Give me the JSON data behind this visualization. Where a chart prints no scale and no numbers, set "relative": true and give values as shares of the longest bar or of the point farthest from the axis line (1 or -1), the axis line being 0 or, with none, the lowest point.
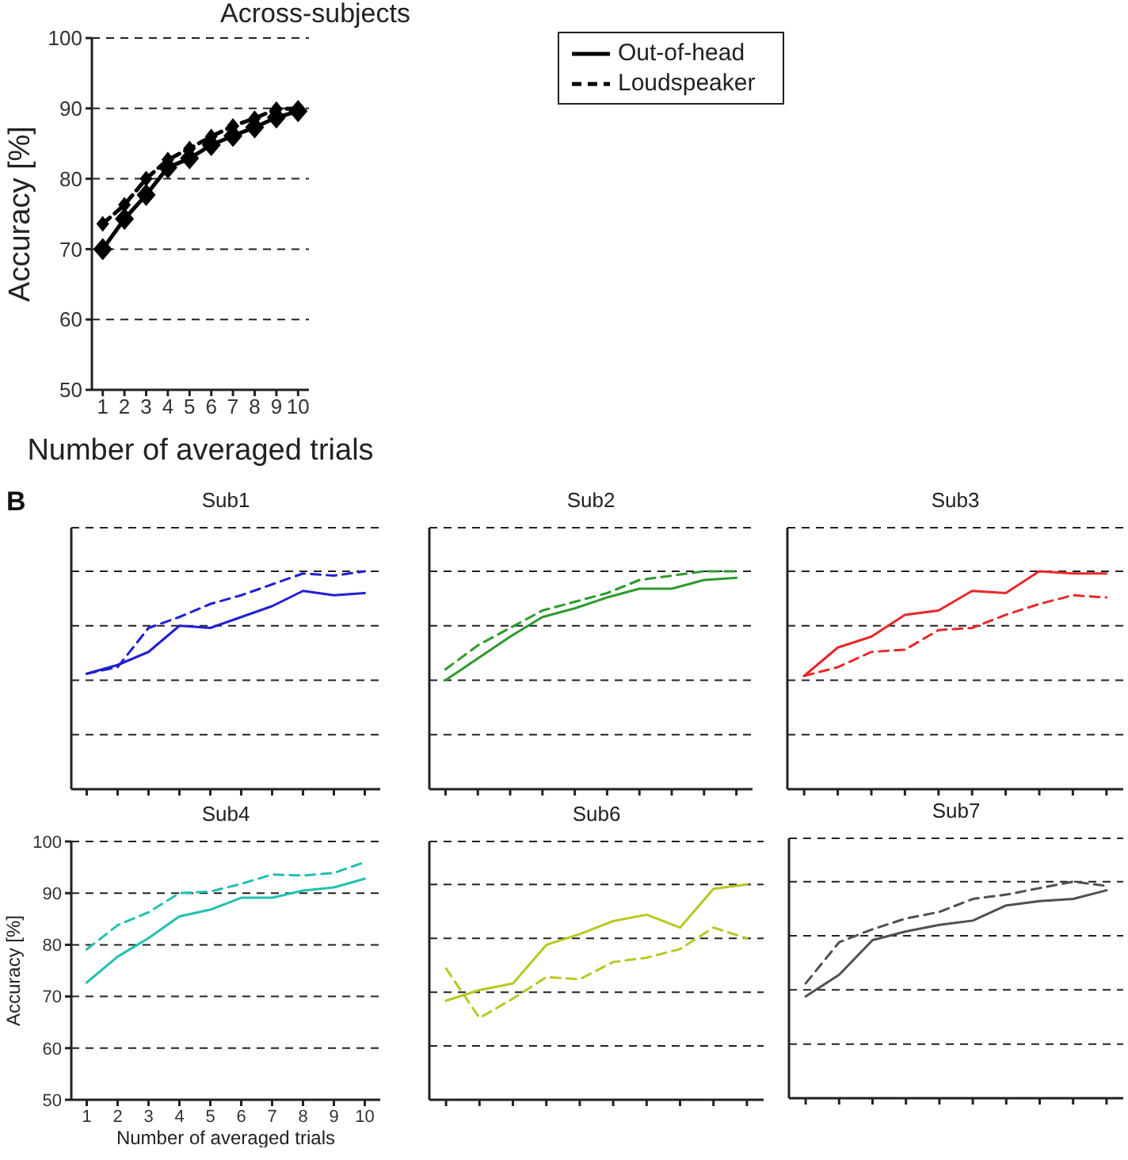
{
  "chart_data": [
    {
      "type": "line",
      "title": "Across-subjects",
      "xlabel": "Number of averaged trials",
      "ylabel": "Accuracy [%]",
      "x": [
        1,
        2,
        3,
        4,
        5,
        6,
        7,
        8,
        9,
        10
      ],
      "xlim": [
        0.5,
        10.5
      ],
      "xticks": [
        1,
        2,
        3,
        4,
        5,
        6,
        7,
        8,
        9,
        10
      ],
      "ylim": [
        50,
        100
      ],
      "yticks": [
        50,
        60,
        70,
        80,
        90,
        100
      ],
      "grid": "y",
      "legend": "right",
      "marker": "diamond",
      "series": [
        {
          "name": "Out-of-head",
          "color": "#000000",
          "line_style": "solid",
          "values": [
            70,
            74.3,
            77.7,
            81.6,
            82.9,
            84.8,
            86.1,
            87.3,
            88.7,
            89.6
          ]
        },
        {
          "name": "Loudspeaker",
          "color": "#000000",
          "line_style": "dashed",
          "values": [
            73.6,
            76.3,
            80,
            82.7,
            84.3,
            86,
            87.5,
            88.6,
            89.9,
            90
          ]
        }
      ]
    },
    {
      "type": "line",
      "title": "Sub1",
      "annotations": [
        "B"
      ],
      "relative": true,
      "categories": [
        null,
        null,
        null,
        null,
        null,
        null,
        null,
        null,
        null,
        null
      ],
      "grid": "y",
      "series": [
        {
          "color": "#2020d0",
          "line_style": "solid",
          "values": [
            0.53,
            0.57,
            0.63,
            0.75,
            0.74,
            0.79,
            0.84,
            0.91,
            0.89,
            0.9
          ]
        },
        {
          "color": "#2020d0",
          "line_style": "dashed",
          "values": [
            0.53,
            0.56,
            0.74,
            0.79,
            0.85,
            0.89,
            0.94,
            0.99,
            0.98,
            1
          ]
        }
      ]
    },
    {
      "type": "line",
      "title": "Sub2",
      "relative": true,
      "categories": [
        null,
        null,
        null,
        null,
        null,
        null,
        null,
        null,
        null,
        null
      ],
      "grid": "y",
      "series": [
        {
          "color": "#2e9a2e",
          "line_style": "solid",
          "values": [
            0.5,
            0.6,
            0.7,
            0.79,
            0.83,
            0.88,
            0.92,
            0.92,
            0.96,
            0.97
          ]
        },
        {
          "color": "#2e9a2e",
          "line_style": "dashed",
          "values": [
            0.55,
            0.66,
            0.74,
            0.82,
            0.86,
            0.9,
            0.96,
            0.98,
            1,
            1
          ]
        }
      ]
    },
    {
      "type": "line",
      "title": "Sub3",
      "relative": true,
      "categories": [
        null,
        null,
        null,
        null,
        null,
        null,
        null,
        null,
        null,
        null
      ],
      "grid": "y",
      "series": [
        {
          "color": "#e82828",
          "line_style": "solid",
          "values": [
            0.52,
            0.65,
            0.7,
            0.8,
            0.82,
            0.91,
            0.9,
            1,
            0.99,
            0.99
          ]
        },
        {
          "color": "#e82828",
          "line_style": "dashed",
          "values": [
            0.52,
            0.56,
            0.63,
            0.64,
            0.73,
            0.74,
            0.8,
            0.85,
            0.89,
            0.88
          ]
        }
      ]
    },
    {
      "type": "line",
      "title": "Sub4",
      "xlabel": "Number of averaged trials",
      "ylabel": "Accuracy [%]",
      "x": [
        1,
        2,
        3,
        4,
        5,
        6,
        7,
        8,
        9,
        10
      ],
      "xlim": [
        0.5,
        10.5
      ],
      "xticks": [
        1,
        2,
        3,
        4,
        5,
        6,
        7,
        8,
        9,
        10
      ],
      "ylim": [
        50,
        100
      ],
      "yticks": [
        50,
        60,
        70,
        80,
        90,
        100
      ],
      "grid": "y",
      "series": [
        {
          "color": "#22c0b0",
          "line_style": "solid",
          "values": [
            72.7,
            77.7,
            81.3,
            85.5,
            86.8,
            89.1,
            89.1,
            90.5,
            91.1,
            92.8
          ]
        },
        {
          "color": "#22c0b0",
          "line_style": "dashed",
          "values": [
            79.1,
            83.8,
            86.3,
            90,
            90.3,
            91.8,
            93.6,
            93.4,
            93.9,
            96
          ]
        }
      ]
    },
    {
      "type": "line",
      "title": "Sub6",
      "relative": true,
      "categories": [
        null,
        null,
        null,
        null,
        null,
        null,
        null,
        null,
        null,
        null
      ],
      "grid": "y",
      "series": [
        {
          "color": "#b8c820",
          "line_style": "solid",
          "values": [
            0.46,
            0.51,
            0.54,
            0.72,
            0.77,
            0.83,
            0.86,
            0.8,
            0.98,
            1
          ]
        },
        {
          "color": "#b8c820",
          "line_style": "dashed",
          "values": [
            0.61,
            0.38,
            0.47,
            0.57,
            0.56,
            0.64,
            0.66,
            0.7,
            0.8,
            0.75
          ]
        }
      ]
    },
    {
      "type": "line",
      "title": "Sub7",
      "relative": true,
      "categories": [
        null,
        null,
        null,
        null,
        null,
        null,
        null,
        null,
        null,
        null
      ],
      "grid": "y",
      "series": [
        {
          "color": "#505050",
          "line_style": "solid",
          "values": [
            0.47,
            0.57,
            0.73,
            0.77,
            0.8,
            0.82,
            0.89,
            0.91,
            0.92,
            0.96
          ]
        },
        {
          "color": "#505050",
          "line_style": "dashed",
          "values": [
            0.53,
            0.72,
            0.78,
            0.83,
            0.86,
            0.92,
            0.94,
            0.97,
            1,
            0.98
          ]
        }
      ]
    }
  ]
}
